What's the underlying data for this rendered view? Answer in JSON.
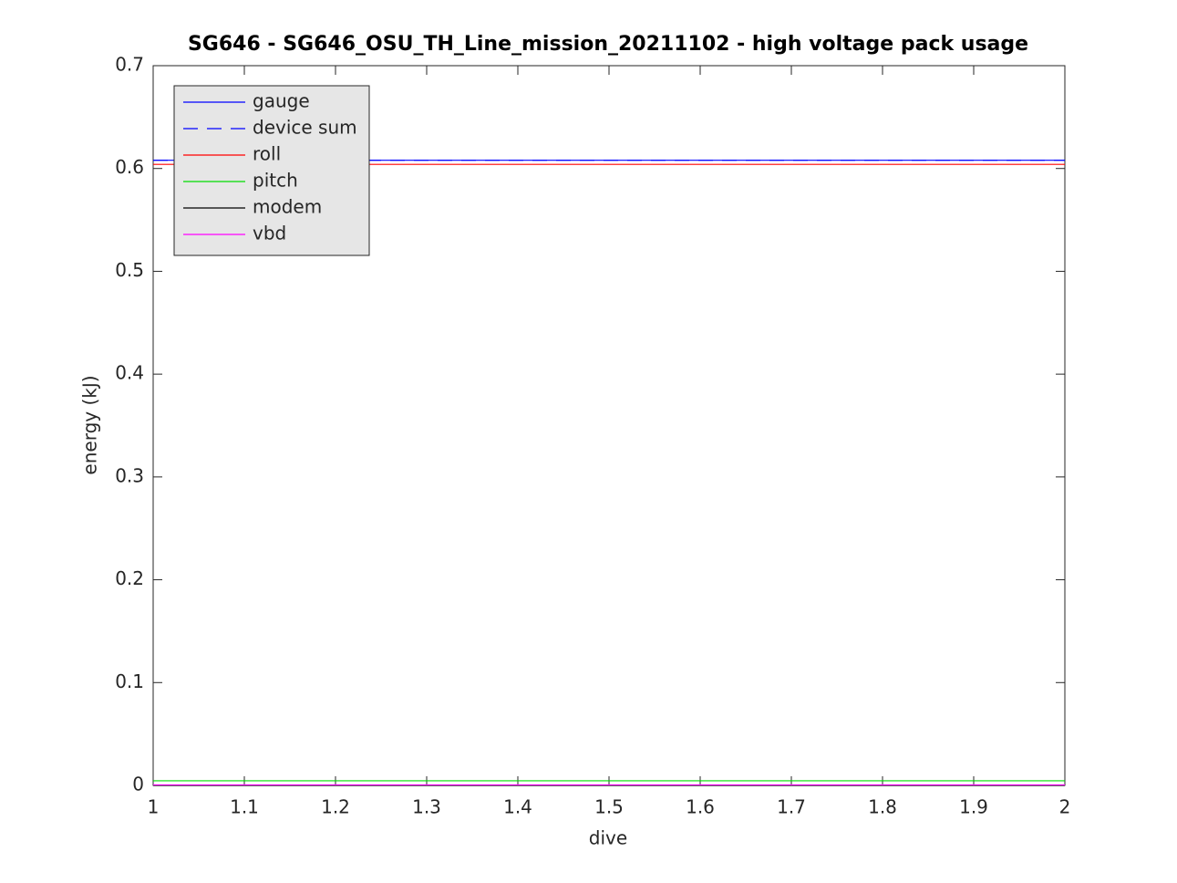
{
  "chart_data": {
    "type": "line",
    "title": "SG646 - SG646_OSU_TH_Line_mission_20211102 - high voltage pack usage",
    "x_label": "dive",
    "y_label": "energy (kJ)",
    "x": [
      1,
      2
    ],
    "series": [
      {
        "name": "gauge",
        "color": "#0000ff",
        "linestyle": "solid",
        "values": [
          0.608,
          0.608
        ]
      },
      {
        "name": "device sum",
        "color": "#0000ff",
        "linestyle": "dashed",
        "values": [
          0.608,
          0.608
        ]
      },
      {
        "name": "roll",
        "color": "#ff0000",
        "linestyle": "solid",
        "values": [
          0.604,
          0.604
        ]
      },
      {
        "name": "pitch",
        "color": "#00dd00",
        "linestyle": "solid",
        "values": [
          0.0045,
          0.0045
        ]
      },
      {
        "name": "modem",
        "color": "#000000",
        "linestyle": "solid",
        "values": [
          0,
          0
        ]
      },
      {
        "name": "vbd",
        "color": "#ff00ff",
        "linestyle": "solid",
        "values": [
          0.0005,
          0.0005
        ]
      }
    ],
    "xlim": [
      1,
      2
    ],
    "xticks": [
      1,
      1.1,
      1.2,
      1.3,
      1.4,
      1.5,
      1.6,
      1.7,
      1.8,
      1.9,
      2
    ],
    "ylim": [
      0,
      0.7
    ],
    "yticks": [
      0,
      0.1,
      0.2,
      0.3,
      0.4,
      0.5,
      0.6,
      0.7
    ],
    "grid": false,
    "legend": "top-left"
  }
}
